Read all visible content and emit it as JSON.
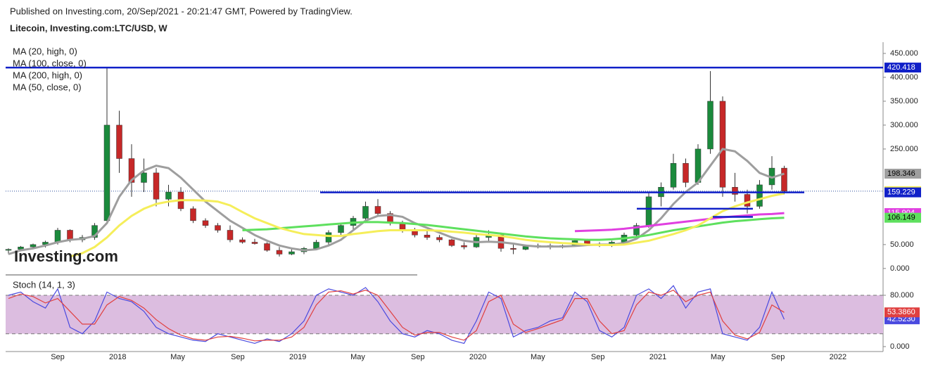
{
  "chart_data": {
    "type": "candlestick",
    "subtitle": "Published on Investing.com, 20/Sep/2021 - 20:21:47 GMT, Powered by TradingView.",
    "title": "Litecoin, Investing.com:LTC/USD, W",
    "watermark": "Investing.com",
    "x_labels": [
      "Sep",
      "2018",
      "May",
      "Sep",
      "2019",
      "May",
      "Sep",
      "2020",
      "May",
      "Sep",
      "2021",
      "May",
      "Sep",
      "2022"
    ],
    "ylim": [
      -12,
      475
    ],
    "yticks": [
      {
        "value": 0,
        "label": "0.000"
      },
      {
        "value": 50,
        "label": "50.000"
      },
      {
        "value": 250,
        "label": "250.000"
      },
      {
        "value": 300,
        "label": "300.000"
      },
      {
        "value": 350,
        "label": "350.000"
      },
      {
        "value": 400,
        "label": "400.000"
      },
      {
        "value": 450,
        "label": "450.000"
      }
    ],
    "up_color": "#1b8a3c",
    "down_color": "#c62828",
    "ohlc": [
      [
        38,
        42,
        30,
        40
      ],
      [
        40,
        47,
        36,
        45
      ],
      [
        45,
        52,
        40,
        50
      ],
      [
        50,
        58,
        44,
        55
      ],
      [
        55,
        85,
        50,
        80
      ],
      [
        80,
        82,
        55,
        60
      ],
      [
        60,
        70,
        55,
        65
      ],
      [
        65,
        95,
        60,
        90
      ],
      [
        100,
        420,
        95,
        300
      ],
      [
        300,
        330,
        200,
        230
      ],
      [
        230,
        260,
        150,
        180
      ],
      [
        180,
        230,
        160,
        200
      ],
      [
        200,
        210,
        130,
        145
      ],
      [
        145,
        175,
        130,
        160
      ],
      [
        160,
        170,
        120,
        125
      ],
      [
        125,
        130,
        95,
        100
      ],
      [
        100,
        105,
        85,
        90
      ],
      [
        90,
        95,
        75,
        80
      ],
      [
        80,
        90,
        55,
        60
      ],
      [
        60,
        65,
        52,
        55
      ],
      [
        55,
        62,
        50,
        52
      ],
      [
        52,
        55,
        35,
        38
      ],
      [
        38,
        45,
        25,
        30
      ],
      [
        30,
        40,
        28,
        35
      ],
      [
        35,
        45,
        30,
        42
      ],
      [
        42,
        60,
        40,
        55
      ],
      [
        55,
        80,
        50,
        75
      ],
      [
        75,
        95,
        70,
        90
      ],
      [
        90,
        110,
        80,
        105
      ],
      [
        105,
        140,
        95,
        130
      ],
      [
        130,
        145,
        110,
        115
      ],
      [
        115,
        120,
        90,
        95
      ],
      [
        95,
        100,
        75,
        80
      ],
      [
        80,
        85,
        65,
        70
      ],
      [
        70,
        80,
        60,
        65
      ],
      [
        65,
        70,
        55,
        60
      ],
      [
        60,
        62,
        45,
        48
      ],
      [
        48,
        55,
        40,
        45
      ],
      [
        45,
        70,
        43,
        65
      ],
      [
        65,
        80,
        55,
        70
      ],
      [
        70,
        75,
        35,
        42
      ],
      [
        42,
        50,
        30,
        40
      ],
      [
        40,
        50,
        38,
        46
      ],
      [
        46,
        52,
        42,
        48
      ],
      [
        48,
        52,
        40,
        45
      ],
      [
        45,
        50,
        42,
        48
      ],
      [
        48,
        60,
        46,
        58
      ],
      [
        58,
        62,
        48,
        50
      ],
      [
        50,
        55,
        45,
        48
      ],
      [
        48,
        58,
        45,
        55
      ],
      [
        55,
        75,
        52,
        70
      ],
      [
        70,
        95,
        65,
        90
      ],
      [
        90,
        160,
        85,
        150
      ],
      [
        150,
        180,
        130,
        170
      ],
      [
        170,
        240,
        165,
        220
      ],
      [
        220,
        230,
        170,
        180
      ],
      [
        180,
        260,
        175,
        250
      ],
      [
        250,
        413,
        240,
        350
      ],
      [
        350,
        360,
        150,
        170
      ],
      [
        170,
        200,
        140,
        155
      ],
      [
        155,
        165,
        115,
        130
      ],
      [
        130,
        185,
        125,
        175
      ],
      [
        175,
        235,
        165,
        210
      ],
      [
        210,
        215,
        155,
        161.862
      ]
    ],
    "series": [
      {
        "name": "MA (20, high, 0)",
        "color": "#9e9e9e",
        "values": [
          30,
          38,
          42,
          48,
          55,
          60,
          62,
          68,
          95,
          150,
          185,
          205,
          215,
          210,
          190,
          165,
          140,
          120,
          100,
          85,
          70,
          58,
          48,
          42,
          38,
          40,
          48,
          60,
          80,
          100,
          110,
          112,
          108,
          95,
          85,
          75,
          65,
          58,
          55,
          56,
          55,
          52,
          48,
          46,
          46,
          46,
          47,
          49,
          50,
          50,
          53,
          62,
          80,
          105,
          135,
          160,
          180,
          215,
          250,
          245,
          225,
          200,
          190,
          198.346
        ]
      },
      {
        "name": "MA (100, close, 0)",
        "color": "#5ee05e",
        "values": [
          null,
          null,
          null,
          null,
          null,
          null,
          null,
          null,
          null,
          null,
          null,
          null,
          null,
          null,
          null,
          null,
          null,
          null,
          null,
          80,
          81,
          82,
          84,
          86,
          88,
          90,
          92,
          94,
          96,
          97,
          97,
          96,
          95,
          93,
          91,
          88,
          85,
          82,
          79,
          76,
          73,
          70,
          67,
          65,
          63,
          62,
          61,
          60,
          60,
          61,
          63,
          66,
          70,
          75,
          80,
          84,
          88,
          92,
          96,
          99,
          101,
          103,
          105,
          106.149
        ]
      },
      {
        "name": "MA (200, high, 0)",
        "color": "#e040e0",
        "values": [
          null,
          null,
          null,
          null,
          null,
          null,
          null,
          null,
          null,
          null,
          null,
          null,
          null,
          null,
          null,
          null,
          null,
          null,
          null,
          null,
          null,
          null,
          null,
          null,
          null,
          null,
          null,
          null,
          null,
          null,
          null,
          null,
          null,
          null,
          null,
          null,
          null,
          null,
          null,
          null,
          null,
          null,
          null,
          null,
          null,
          null,
          78,
          79,
          80,
          81,
          83,
          86,
          89,
          92,
          95,
          98,
          101,
          104,
          107,
          109,
          111,
          113,
          114,
          115.904
        ]
      },
      {
        "name": "MA (50, close, 0)",
        "color": "#f5ee5a",
        "values": [
          null,
          null,
          null,
          null,
          null,
          25,
          32,
          45,
          65,
          90,
          110,
          125,
          135,
          140,
          143,
          143,
          142,
          140,
          132,
          118,
          105,
          95,
          85,
          78,
          72,
          70,
          68,
          68,
          72,
          75,
          78,
          80,
          80,
          80,
          80,
          79,
          77,
          75,
          72,
          70,
          68,
          64,
          60,
          57,
          55,
          53,
          52,
          50,
          49,
          49,
          50,
          54,
          58,
          65,
          72,
          80,
          90,
          105,
          120,
          130,
          138,
          145,
          152,
          157
        ]
      }
    ],
    "levels": [
      420.418,
      159.229,
      125,
      108
    ],
    "level_color": "#1020c8",
    "stoch": {
      "title": "Stoch (14, 1, 3)",
      "ylim": [
        -7.7,
        105.2
      ],
      "yticks": [
        {
          "value": 0,
          "label": "0.000"
        },
        {
          "value": 80,
          "label": "80.000"
        }
      ],
      "band": [
        20,
        80
      ],
      "series": [
        {
          "color": "#4a4adf",
          "values": [
            80,
            85,
            70,
            60,
            90,
            30,
            20,
            40,
            85,
            75,
            70,
            55,
            30,
            20,
            15,
            10,
            8,
            20,
            15,
            10,
            5,
            12,
            8,
            20,
            40,
            80,
            90,
            85,
            80,
            92,
            70,
            40,
            20,
            15,
            25,
            20,
            10,
            5,
            40,
            85,
            75,
            15,
            25,
            30,
            40,
            45,
            85,
            70,
            25,
            15,
            30,
            80,
            90,
            75,
            95,
            60,
            85,
            90,
            20,
            15,
            10,
            30,
            85,
            42.523
          ],
          "last_label": "42.5230"
        },
        {
          "color": "#e04040",
          "values": [
            75,
            82,
            78,
            68,
            75,
            55,
            35,
            35,
            65,
            78,
            72,
            60,
            42,
            28,
            18,
            12,
            10,
            15,
            16,
            13,
            9,
            10,
            10,
            15,
            30,
            65,
            85,
            87,
            82,
            88,
            80,
            55,
            30,
            18,
            22,
            22,
            15,
            10,
            25,
            70,
            80,
            35,
            22,
            28,
            35,
            42,
            75,
            75,
            40,
            20,
            25,
            65,
            85,
            80,
            88,
            70,
            80,
            85,
            40,
            18,
            12,
            22,
            65,
            53.386
          ],
          "last_label": "53.3860"
        }
      ]
    }
  }
}
